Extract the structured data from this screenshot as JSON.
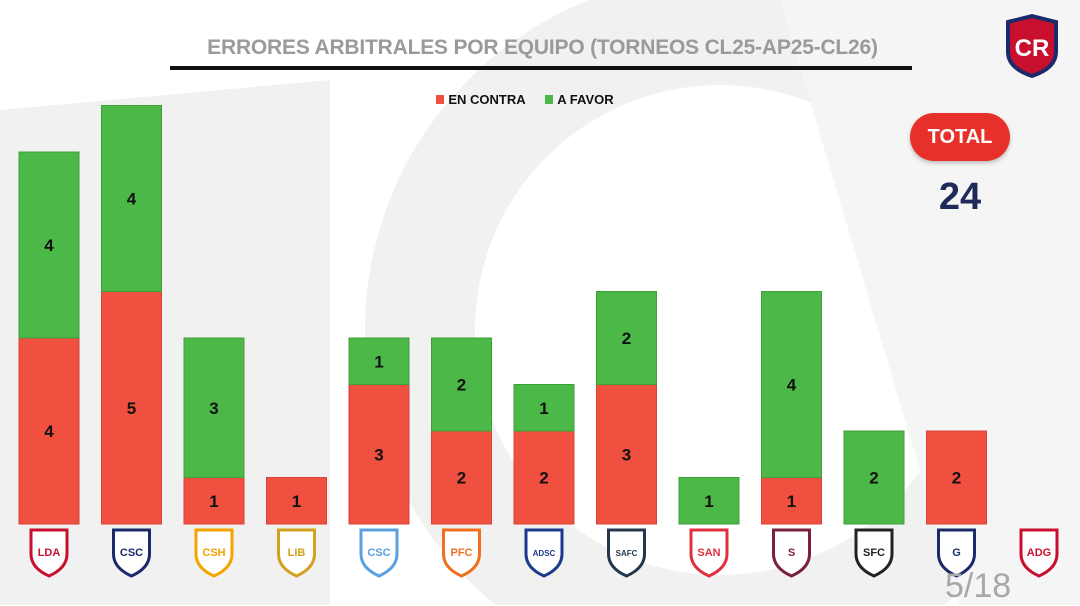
{
  "header": {
    "title": "ERRORES ARBITRALES POR EQUIPO (TORNEOS CL25-AP25-CL26)",
    "federation_logo_text": "CR"
  },
  "summary": {
    "total_label": "TOTAL",
    "total_value": "24"
  },
  "footer": {
    "page": "5/18"
  },
  "colors": {
    "en_contra": "#f0503f",
    "a_favor": "#4cb848"
  },
  "chart_data": {
    "type": "bar",
    "stacked": true,
    "title": "ERRORES ARBITRALES POR EQUIPO (TORNEOS CL25-AP25-CL26)",
    "legend": [
      "EN CONTRA",
      "A FAVOR"
    ],
    "legend_position": "top-center",
    "categories": [
      "LDA",
      "CSC",
      "Herediano",
      "Liberia",
      "Cartaginés",
      "PFC",
      "ADSC",
      "Santa Ana",
      "Santos",
      "Saprissa",
      "Sporting",
      "Guadalupe",
      "ADG"
    ],
    "logo_texts": [
      "LDA",
      "CSC",
      "CSH",
      "LIB",
      "CSC",
      "PFC",
      "ADSC",
      "SAFC",
      "SAN",
      "S",
      "SFC",
      "G",
      "ADG"
    ],
    "logo_colors": [
      "#c8102e",
      "#1b2a6b",
      "#f5a300",
      "#d4a020",
      "#5aa0e0",
      "#f07020",
      "#1b3a8a",
      "#23384f",
      "#e03040",
      "#7a1f3d",
      "#222",
      "#1b2a6b",
      "#c8102e"
    ],
    "series": [
      {
        "name": "EN CONTRA",
        "values": [
          4,
          5,
          1,
          1,
          3,
          2,
          2,
          3,
          0,
          1,
          0,
          2,
          0
        ]
      },
      {
        "name": "A FAVOR",
        "values": [
          4,
          4,
          3,
          0,
          1,
          2,
          1,
          2,
          1,
          4,
          2,
          0,
          0
        ]
      }
    ],
    "ylim": [
      0,
      9
    ],
    "grid": false
  }
}
